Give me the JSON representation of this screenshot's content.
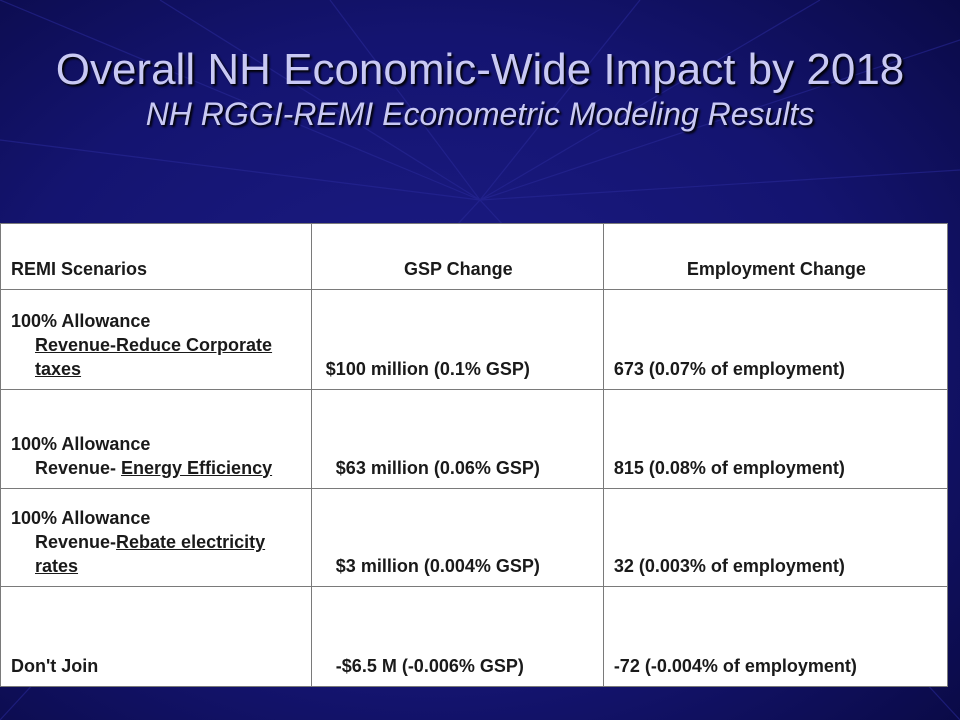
{
  "slide": {
    "title": "Overall NH Economic-Wide Impact by 2018",
    "subtitle": "NH RGGI-REMI Econometric Modeling Results",
    "colors": {
      "background": "#13136a",
      "title_text": "#c9c9f4",
      "positive_value": "#1f4a12",
      "negative_value": "#b01212"
    }
  },
  "table": {
    "headers": [
      "REMI Scenarios",
      "GSP Change",
      "Employment Change"
    ],
    "rows": [
      {
        "scenario_line1": "100% Allowance",
        "scenario_plain": "",
        "scenario_underlined": "Revenue-Reduce Corporate taxes",
        "gsp": "$100 million (0.1% GSP)",
        "employment": "673 (0.07% of employment)"
      },
      {
        "scenario_line1": "100% Allowance",
        "scenario_plain": "Revenue- ",
        "scenario_underlined": "Energy Efficiency",
        "gsp": "$63 million (0.06% GSP)",
        "employment": "815 (0.08% of employment)"
      },
      {
        "scenario_line1": "100% Allowance",
        "scenario_plain": "Revenue-",
        "scenario_underlined": "Rebate electricity rates",
        "gsp": "$3 million (0.004% GSP)",
        "employment": "32 (0.003% of employment)"
      },
      {
        "scenario_line1": "Don't Join",
        "gsp": "-$6.5 M (-0.006% GSP)",
        "employment": "-72 (-0.004% of employment)"
      }
    ]
  }
}
